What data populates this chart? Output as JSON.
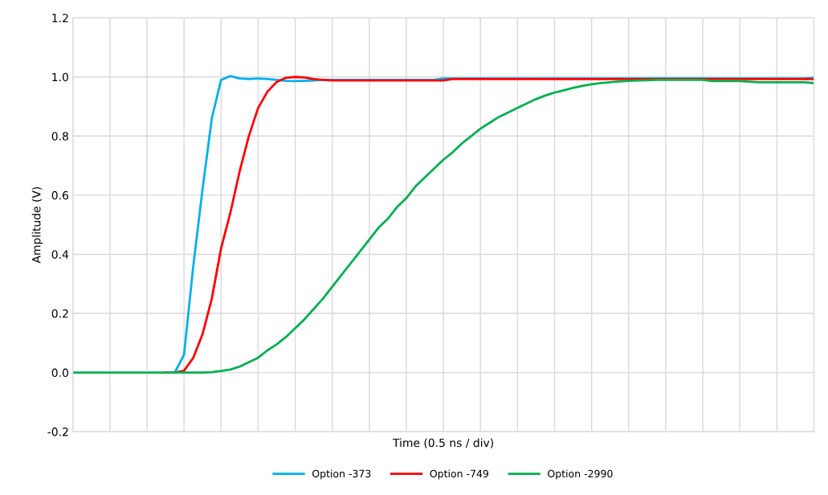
{
  "chart_data": {
    "type": "line",
    "xlabel": "Time (0.5 ns / div)",
    "ylabel": "Amplitude (V)",
    "categories": [
      null,
      null,
      null,
      null,
      null,
      null,
      null,
      null,
      null,
      null,
      null,
      null,
      null,
      null,
      null,
      null,
      null,
      null,
      null,
      null,
      null,
      null,
      null,
      null,
      null,
      null,
      null,
      null,
      null,
      null,
      null,
      null,
      null,
      null,
      null,
      null,
      null,
      null,
      null,
      null,
      null,
      null,
      null,
      null,
      null,
      null,
      null,
      null,
      null,
      null,
      null,
      null,
      null,
      null,
      null,
      null,
      null,
      null,
      null,
      null,
      null,
      null,
      null,
      null,
      null,
      null,
      null,
      null,
      null,
      null,
      null,
      null,
      null,
      null,
      null,
      null,
      null,
      null,
      null,
      null,
      null
    ],
    "series": [
      {
        "name": "Option -373",
        "color": "#00b0f0",
        "values": [
          null,
          null,
          null,
          null,
          null,
          null,
          null,
          null,
          null,
          null,
          0,
          0,
          0.06,
          0.36,
          0.62,
          0.86,
          0.99,
          1.003,
          0.995,
          0.993,
          0.995,
          0.993,
          0.99,
          0.987,
          0.986,
          0.987,
          0.988,
          0.99,
          0.99,
          0.99,
          0.99,
          0.99,
          0.99,
          0.99,
          0.99,
          0.99,
          0.99,
          0.99,
          0.99,
          0.99,
          0.995,
          0.995,
          0.995,
          0.995,
          0.995,
          0.995,
          0.995,
          0.995,
          0.995,
          0.995,
          0.995,
          0.995,
          0.995,
          0.995,
          0.995,
          0.995,
          0.995,
          0.995,
          0.995,
          0.995,
          0.995,
          0.995,
          0.995,
          0.995,
          0.995,
          0.995,
          0.995,
          0.995,
          0.995,
          0.995,
          0.995,
          0.995,
          0.995,
          0.995,
          0.995,
          0.995,
          0.995,
          0.995,
          0.995,
          0.995,
          0.997
        ]
      },
      {
        "name": "Option -749",
        "color": "#ff0000",
        "values": [
          null,
          null,
          null,
          null,
          null,
          null,
          null,
          null,
          null,
          null,
          0,
          0,
          0.006,
          0.05,
          0.13,
          0.25,
          0.42,
          0.54,
          0.68,
          0.8,
          0.895,
          0.95,
          0.983,
          0.997,
          1.0,
          0.998,
          0.993,
          0.99,
          0.988,
          0.988,
          0.988,
          0.988,
          0.988,
          0.988,
          0.988,
          0.988,
          0.988,
          0.988,
          0.988,
          0.988,
          0.988,
          0.993,
          0.993,
          0.993,
          0.993,
          0.993,
          0.993,
          0.993,
          0.993,
          0.993,
          0.993,
          0.993,
          0.993,
          0.993,
          0.993,
          0.993,
          0.993,
          0.993,
          0.993,
          0.993,
          0.993,
          0.993,
          0.993,
          0.993,
          0.993,
          0.993,
          0.993,
          0.993,
          0.993,
          0.993,
          0.993,
          0.993,
          0.993,
          0.993,
          0.993,
          0.993,
          0.993,
          0.993,
          0.993,
          0.993,
          0.993
        ]
      },
      {
        "name": "Option -2990",
        "color": "#00b050",
        "values": [
          0,
          0,
          0,
          0,
          0,
          0,
          0,
          0,
          0,
          0,
          0,
          0,
          0,
          0,
          0,
          0.001,
          0.005,
          0.01,
          0.02,
          0.035,
          0.05,
          0.075,
          0.095,
          0.12,
          0.15,
          0.18,
          0.215,
          0.25,
          0.29,
          0.33,
          0.37,
          0.41,
          0.45,
          0.49,
          0.52,
          0.56,
          0.59,
          0.63,
          0.66,
          0.69,
          0.72,
          0.745,
          0.775,
          0.8,
          0.825,
          0.845,
          0.865,
          0.88,
          0.895,
          0.91,
          0.925,
          0.937,
          0.947,
          0.955,
          0.963,
          0.97,
          0.975,
          0.979,
          0.982,
          0.985,
          0.987,
          0.988,
          0.989,
          0.99,
          0.99,
          0.99,
          0.99,
          0.99,
          0.99,
          0.986,
          0.986,
          0.986,
          0.986,
          0.984,
          0.982,
          0.982,
          0.982,
          0.982,
          0.982,
          0.982,
          0.979
        ]
      }
    ],
    "ylim": [
      -0.2,
      1.2
    ],
    "yticks": [
      {
        "value": -0.2,
        "label": "-0.2"
      },
      {
        "value": 0,
        "label": "0.0"
      },
      {
        "value": 0.2,
        "label": "0.2"
      },
      {
        "value": 0.4,
        "label": "0.4"
      },
      {
        "value": 0.6,
        "label": "0.6"
      },
      {
        "value": 0.8,
        "label": "0.8"
      },
      {
        "value": 1.0,
        "label": "1.0"
      },
      {
        "value": 1.2,
        "label": "1.2"
      }
    ],
    "tick_labels": "y",
    "grid": true,
    "legend": "bottom",
    "marker": "none",
    "line_style": "solid"
  }
}
